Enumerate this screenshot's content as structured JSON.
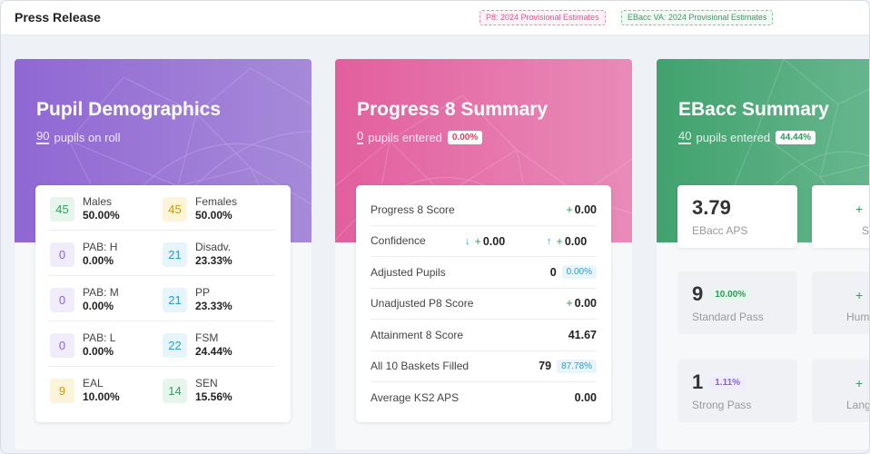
{
  "header": {
    "title": "Press Release",
    "tags": {
      "p8": "P8: 2024 Provisional Estimates",
      "ebacc": "EBacc VA: 2024 Provisional Estimates"
    }
  },
  "demographics": {
    "title": "Pupil Demographics",
    "count": "90",
    "count_label": "pupils on roll",
    "rows": [
      {
        "left": {
          "n": "45",
          "label": "Males",
          "value": "50.00%"
        },
        "right": {
          "n": "45",
          "label": "Females",
          "value": "50.00%"
        }
      },
      {
        "left": {
          "n": "0",
          "label": "PAB: H",
          "value": "0.00%"
        },
        "right": {
          "n": "21",
          "label": "Disadv.",
          "value": "23.33%"
        }
      },
      {
        "left": {
          "n": "0",
          "label": "PAB: M",
          "value": "0.00%"
        },
        "right": {
          "n": "21",
          "label": "PP",
          "value": "23.33%"
        }
      },
      {
        "left": {
          "n": "0",
          "label": "PAB: L",
          "value": "0.00%"
        },
        "right": {
          "n": "22",
          "label": "FSM",
          "value": "24.44%"
        }
      },
      {
        "left": {
          "n": "9",
          "label": "EAL",
          "value": "10.00%"
        },
        "right": {
          "n": "14",
          "label": "SEN",
          "value": "15.56%"
        }
      }
    ]
  },
  "progress8": {
    "title": "Progress 8 Summary",
    "count": "0",
    "count_label": "pupils entered",
    "pct": "0.00%",
    "rows": {
      "score": {
        "label": "Progress 8 Score",
        "value": "0.00"
      },
      "confidence": {
        "label": "Confidence",
        "low": "0.00",
        "high": "0.00"
      },
      "adjusted": {
        "label": "Adjusted Pupils",
        "value": "0",
        "pct": "0.00%"
      },
      "unadjusted": {
        "label": "Unadjusted P8 Score",
        "value": "0.00"
      },
      "attainment": {
        "label": "Attainment 8 Score",
        "value": "41.67"
      },
      "baskets": {
        "label": "All 10 Baskets Filled",
        "value": "79",
        "pct": "87.78%"
      },
      "ks2": {
        "label": "Average KS2 APS",
        "value": "0.00"
      }
    }
  },
  "ebacc": {
    "title": "EBacc Summary",
    "count": "40",
    "count_label": "pupils entered",
    "pct": "44.44%",
    "aps": {
      "value": "3.79",
      "label": "EBacc APS"
    },
    "standard": {
      "value": "9",
      "pct": "10.00%",
      "label": "Standard Pass"
    },
    "strong": {
      "value": "1",
      "pct": "1.11%",
      "label": "Strong Pass"
    },
    "cut_labels": {
      "a": "S",
      "b": "Hum",
      "c": "Lang"
    }
  },
  "colors": {
    "purple": "#9067d3",
    "pink": "#e25f9e",
    "green": "#41a26e"
  }
}
